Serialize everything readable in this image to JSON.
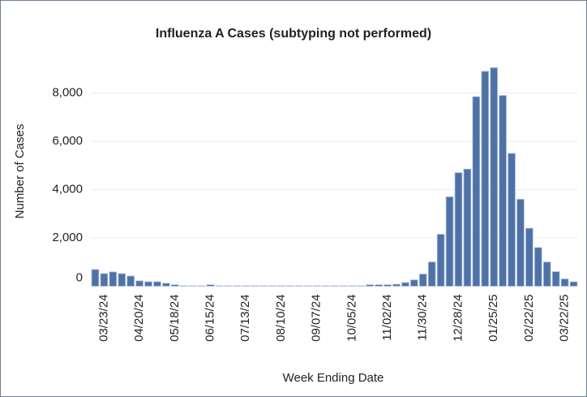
{
  "chart_data": {
    "type": "bar",
    "title": "Influenza A Cases (subtyping not performed)",
    "x_label": "Week Ending Date",
    "y_label": "Number of Cases",
    "categories": [
      null,
      "03/23/24",
      null,
      null,
      null,
      "04/20/24",
      null,
      null,
      null,
      "05/18/24",
      null,
      null,
      null,
      "06/15/24",
      null,
      null,
      null,
      "07/13/24",
      null,
      null,
      null,
      "08/10/24",
      null,
      null,
      null,
      "09/07/24",
      null,
      null,
      null,
      "10/05/24",
      null,
      null,
      null,
      "11/02/24",
      null,
      null,
      null,
      "11/30/24",
      null,
      null,
      null,
      "12/28/24",
      null,
      null,
      null,
      "01/25/25",
      null,
      null,
      null,
      "02/22/25",
      null,
      null,
      null,
      "03/22/25",
      null
    ],
    "values": [
      690,
      520,
      590,
      520,
      420,
      220,
      185,
      185,
      120,
      60,
      20,
      15,
      15,
      60,
      15,
      15,
      15,
      15,
      15,
      15,
      15,
      15,
      15,
      15,
      15,
      15,
      15,
      15,
      15,
      15,
      15,
      60,
      60,
      60,
      80,
      150,
      260,
      500,
      1000,
      2150,
      3700,
      4700,
      4850,
      7850,
      8900,
      9050,
      7900,
      5500,
      3600,
      2400,
      1600,
      1000,
      600,
      300,
      180
    ],
    "color": "#4e72a8",
    "ylim": [
      0,
      9500
    ],
    "yticks": [
      0,
      {
        "value": 2000,
        "label": "2,000"
      },
      {
        "value": 4000,
        "label": "4,000"
      },
      {
        "value": 6000,
        "label": "6,000"
      },
      {
        "value": 8000,
        "label": "8,000"
      }
    ],
    "grid": true
  }
}
